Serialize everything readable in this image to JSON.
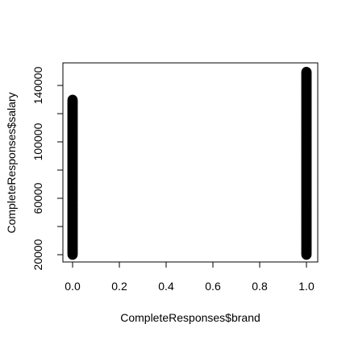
{
  "chart_data": {
    "type": "scatter",
    "title": "",
    "xlabel": "CompleteResponses$brand",
    "ylabel": "CompleteResponses$salary",
    "xlim": [
      0,
      1
    ],
    "ylim": [
      20000,
      150000
    ],
    "xticks": [
      0.0,
      0.2,
      0.4,
      0.6,
      0.8,
      1.0
    ],
    "xtick_labels": [
      "0.0",
      "0.2",
      "0.4",
      "0.6",
      "0.8",
      "1.0"
    ],
    "yticks": [
      20000,
      40000,
      60000,
      80000,
      100000,
      120000,
      140000
    ],
    "ytick_labels": [
      "20000",
      "",
      "60000",
      "",
      "100000",
      "",
      "140000"
    ],
    "grid": false,
    "legend": "none",
    "marker_color": "#000000",
    "series": [
      {
        "x_value": 0,
        "y_min": 20000,
        "y_max": 130000,
        "y_step": 600
      },
      {
        "x_value": 1,
        "y_min": 20000,
        "y_max": 150000,
        "y_step": 600
      }
    ]
  }
}
